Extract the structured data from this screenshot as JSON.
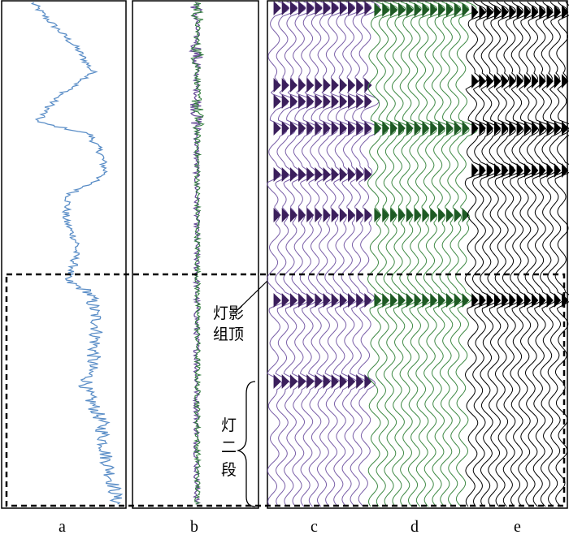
{
  "figure": {
    "panels": [
      {
        "id": "a",
        "label": "a"
      },
      {
        "id": "b",
        "label": "b"
      },
      {
        "id": "c",
        "label": "c"
      },
      {
        "id": "d",
        "label": "d"
      },
      {
        "id": "e",
        "label": "e"
      }
    ],
    "annotations": {
      "top_line1": "灯影",
      "top_line2": "组顶",
      "member_line1": "灯",
      "member_line2": "二",
      "member_line3": "段"
    },
    "colors": {
      "log_a": "#5b8ec7",
      "log_b_primary": "#6a4f9a",
      "log_b_secondary": "#2f7d3a",
      "seismic_c": "#3b1f5c",
      "seismic_c_line": "#7a5fa8",
      "seismic_d": "#1e5a24",
      "seismic_d_line": "#3f8a45",
      "seismic_e": "#000000",
      "frame": "#000000"
    }
  }
}
